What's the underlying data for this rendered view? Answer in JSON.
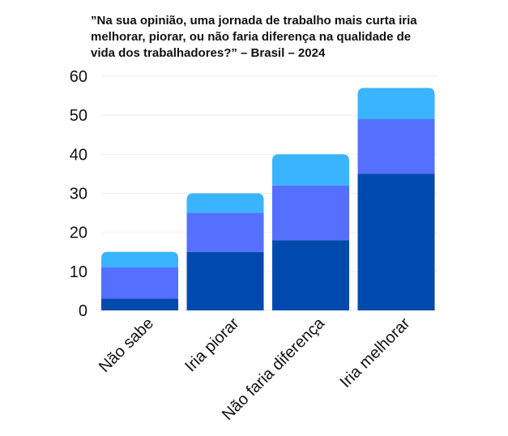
{
  "chart_data": {
    "type": "bar",
    "stacked": true,
    "title": "”Na sua opinião, uma jornada de trabalho mais curta iria melhorar, piorar, ou não faria diferença na qualidade de vida dos trabalhadores?” – Brasil – 2024",
    "categories": [
      "Não sabe",
      "Iria piorar",
      "Não faria diferença",
      "Iria melhorar"
    ],
    "series": [
      {
        "color": "#004AAD",
        "values": [
          3,
          15,
          18,
          35
        ]
      },
      {
        "color": "#5570FF",
        "values": [
          8,
          10,
          14,
          14
        ]
      },
      {
        "color": "#3BB4FF",
        "values": [
          4,
          5,
          8,
          8
        ]
      }
    ],
    "ylim": [
      0,
      60
    ],
    "yticks": [
      0,
      10,
      20,
      30,
      40,
      50,
      60
    ],
    "grid": true,
    "legend": "none"
  }
}
